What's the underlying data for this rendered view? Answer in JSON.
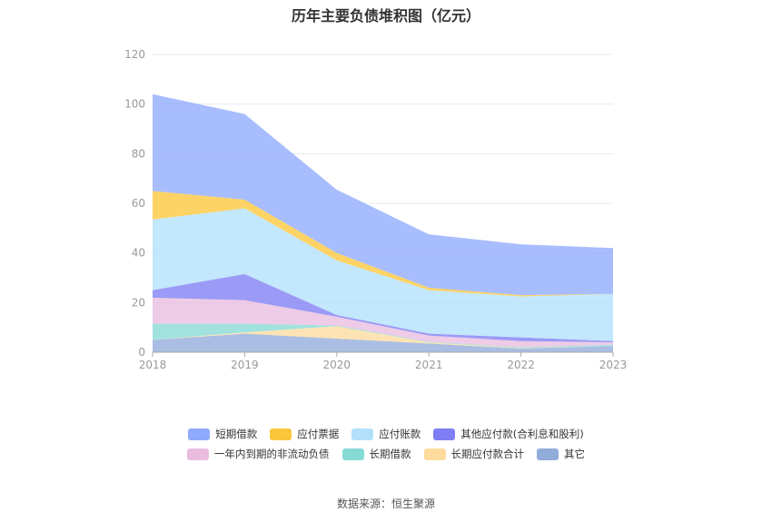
{
  "title": "历年主要负债堆积图（亿元）",
  "source": "数据来源：恒生聚源",
  "chart_data": {
    "type": "area",
    "stacked": true,
    "x": [
      "2018",
      "2019",
      "2020",
      "2021",
      "2022",
      "2023"
    ],
    "ylim": [
      0,
      120
    ],
    "yticks": [
      "0",
      "20",
      "40",
      "60",
      "80",
      "100",
      "120"
    ],
    "legend_position": "bottom",
    "series": [
      {
        "name": "短期借款",
        "color": "#8faafc",
        "values": [
          39.0,
          34.5,
          25.5,
          21.5,
          20.5,
          18.5
        ]
      },
      {
        "name": "应付票据",
        "color": "#fcc63a",
        "values": [
          11.5,
          3.5,
          3.0,
          1.0,
          0.5,
          0.0
        ]
      },
      {
        "name": "应付账款",
        "color": "#b2e0fb",
        "values": [
          28.5,
          26.5,
          22.0,
          17.5,
          16.5,
          19.0
        ]
      },
      {
        "name": "其他应付款(合利息和股利)",
        "color": "#7f7ef4",
        "values": [
          3.0,
          10.5,
          0.7,
          0.8,
          1.5,
          0.5
        ]
      },
      {
        "name": "一年内到期的非流动负债",
        "color": "#e9bcdf",
        "values": [
          10.5,
          9.5,
          3.5,
          2.5,
          2.5,
          1.0
        ]
      },
      {
        "name": "长期借款",
        "color": "#86dad6",
        "values": [
          6.5,
          3.5,
          0.3,
          0.2,
          0.3,
          0.5
        ]
      },
      {
        "name": "长期应付款合计",
        "color": "#fddb9d",
        "values": [
          0.0,
          0.5,
          5.0,
          0.5,
          0.2,
          0.0
        ]
      },
      {
        "name": "其它",
        "color": "#92acdb",
        "values": [
          5.0,
          7.5,
          5.5,
          3.5,
          1.5,
          2.5
        ]
      }
    ]
  }
}
